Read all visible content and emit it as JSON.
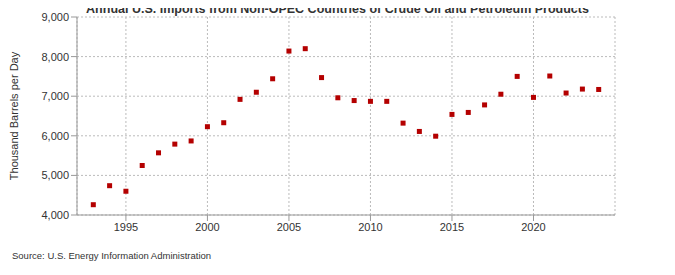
{
  "chart_data": {
    "type": "scatter",
    "title": "Annual U.S. Imports from Non-OPEC Countries of Crude Oil and Petroleum Products",
    "y_label": "Thousand Barrels per Day",
    "source": "Source: U.S. Energy Information Administration",
    "x": [
      1993,
      1994,
      1995,
      1996,
      1997,
      1998,
      1999,
      2000,
      2001,
      2002,
      2003,
      2004,
      2005,
      2006,
      2007,
      2008,
      2009,
      2010,
      2011,
      2012,
      2013,
      2014,
      2015,
      2016,
      2017,
      2018,
      2019,
      2020,
      2021,
      2022,
      2023,
      2024
    ],
    "values": [
      4260,
      4740,
      4600,
      5250,
      5570,
      5790,
      5870,
      6230,
      6330,
      6920,
      7100,
      7440,
      8140,
      8200,
      7470,
      6960,
      6890,
      6870,
      6870,
      6320,
      6110,
      5990,
      6540,
      6590,
      6780,
      7050,
      7500,
      6970,
      7510,
      7080,
      7180,
      7170
    ],
    "color": "#b40000",
    "marker": "square",
    "xlim": [
      1992,
      2025
    ],
    "xticks": [
      1995,
      2000,
      2005,
      2010,
      2015,
      2020
    ],
    "ylim": [
      4000,
      9000
    ],
    "yticks": [
      {
        "value": 4000,
        "label": "4,000"
      },
      {
        "value": 5000,
        "label": "5,000"
      },
      {
        "value": 6000,
        "label": "6,000"
      },
      {
        "value": 7000,
        "label": "7,000"
      },
      {
        "value": 8000,
        "label": "8,000"
      },
      {
        "value": 9000,
        "label": "9,000"
      }
    ],
    "grid": true
  }
}
